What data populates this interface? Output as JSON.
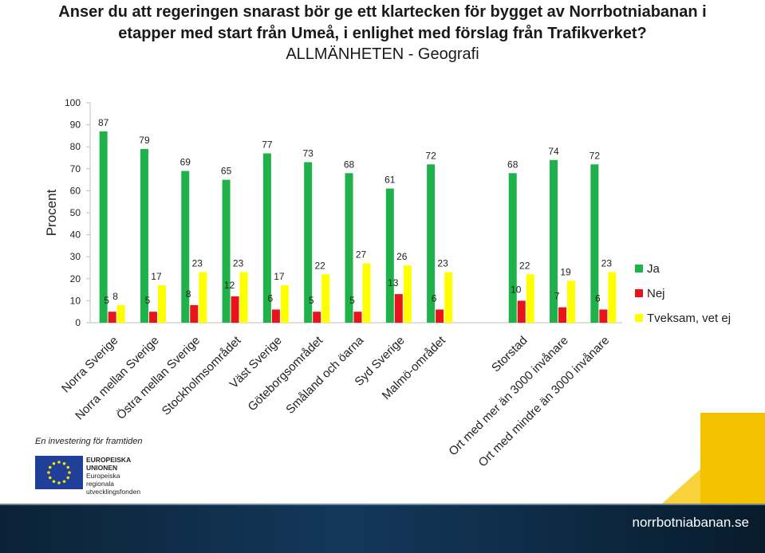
{
  "header": {
    "title": "Anser du att regeringen snarast bör ge ett klartecken för bygget av Norrbotniabanan i etapper med start från Umeå, i enlighet med förslag från Trafikverket?",
    "subtitle": "ALLMÄNHETEN - Geografi"
  },
  "chart_data": {
    "type": "bar",
    "title": "Anser du att regeringen snarast bör ge ett klartecken för bygget av Norrbotniabanan i etapper med start från Umeå, i enlighet med förslag från Trafikverket?",
    "subtitle": "ALLMÄNHETEN - Geografi",
    "ylabel": "Procent",
    "xlabel": "",
    "ylim": [
      0,
      100
    ],
    "yticks": [
      0,
      10,
      20,
      30,
      40,
      50,
      60,
      70,
      80,
      90,
      100
    ],
    "grid": false,
    "legend_position": "right",
    "categories": [
      "Norra Sverige",
      "Norra mellan Sverige",
      "Östra mellan Sverige",
      "Stockholmsområdet",
      "Väst Sverige",
      "Göteborgsområdet",
      "Småland och öarna",
      "Syd Sverige",
      "Malmö-området",
      "",
      "Storstad",
      "Ort med mer än 3000 invånare",
      "Ort med mindre än 3000 invånare"
    ],
    "series": [
      {
        "name": "Ja",
        "color": "#1fb24a",
        "values": [
          87,
          79,
          69,
          65,
          77,
          73,
          68,
          61,
          72,
          null,
          68,
          74,
          72
        ]
      },
      {
        "name": "Nej",
        "color": "#e8141c",
        "values": [
          5,
          5,
          8,
          12,
          6,
          5,
          5,
          13,
          6,
          null,
          10,
          7,
          6
        ]
      },
      {
        "name": "Tveksam, vet ej",
        "color": "#ffff00",
        "values": [
          8,
          17,
          23,
          23,
          17,
          22,
          27,
          26,
          23,
          null,
          22,
          19,
          23
        ]
      }
    ]
  },
  "branding": {
    "eu_caption": "En investering för framtiden",
    "eu_lines": [
      "EUROPEISKA",
      "UNIONEN",
      "Europeiska",
      "regionala",
      "utvecklingsfonden"
    ],
    "eu_flag_color": "#1f3f99",
    "eu_star_color": "#ffdd00",
    "site": "norrbotniabanan.se"
  }
}
